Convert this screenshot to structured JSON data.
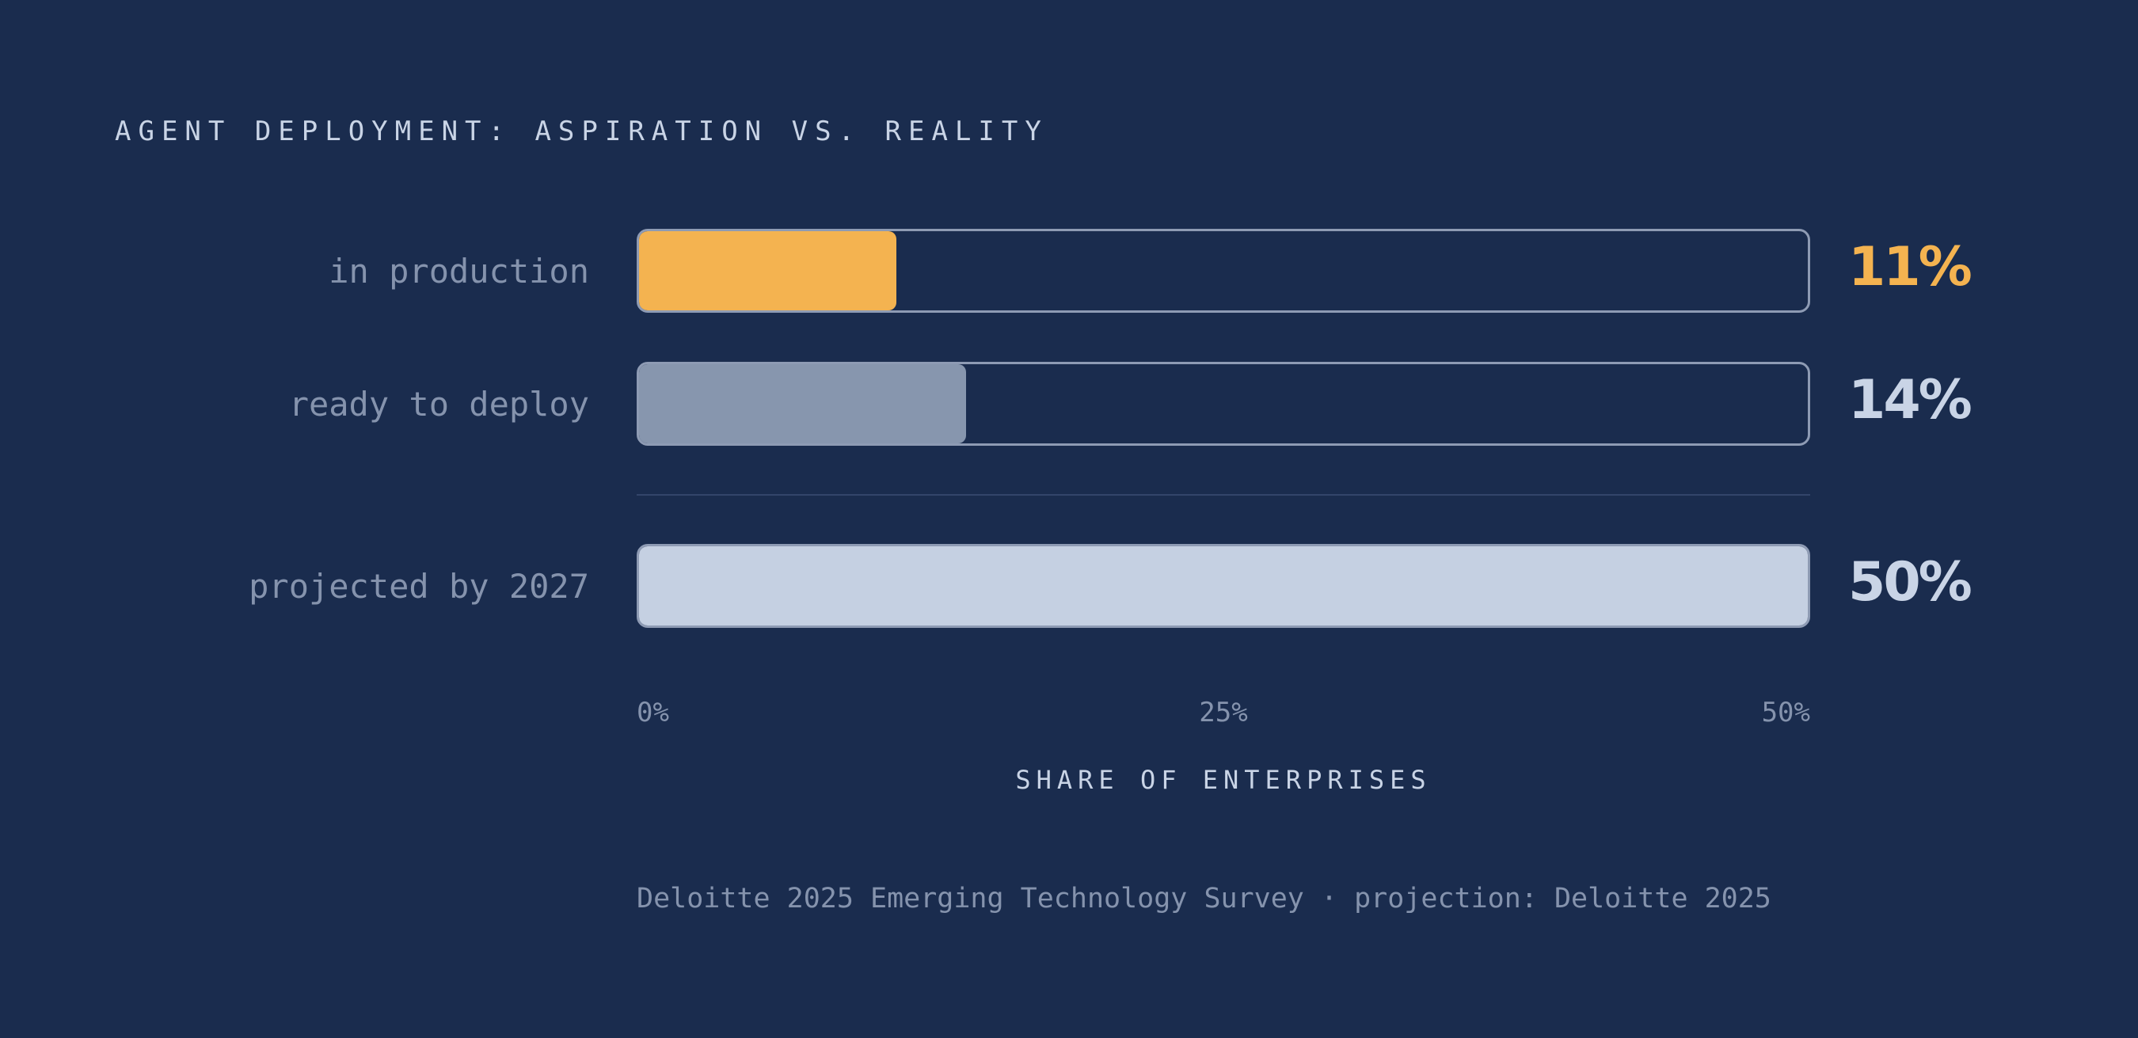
{
  "chart_data": {
    "type": "bar",
    "orientation": "horizontal",
    "title": "AGENT DEPLOYMENT: ASPIRATION VS. REALITY",
    "xlabel": "SHARE OF ENTERPRISES",
    "xlim": [
      0,
      50
    ],
    "ticks": [
      "0%",
      "25%",
      "50%"
    ],
    "categories": [
      "in production",
      "ready to deploy",
      "projected by 2027"
    ],
    "values": [
      11,
      14,
      50
    ],
    "value_labels": [
      "11%",
      "14%",
      "50%"
    ],
    "colors": [
      "#f4b350",
      "#8796ae",
      "#c5d0e2"
    ],
    "label_colors": [
      "#f4b350",
      "#c9d4e6",
      "#c9d4e6"
    ],
    "source": "Deloitte 2025 Emerging Technology Survey · projection: Deloitte 2025"
  }
}
